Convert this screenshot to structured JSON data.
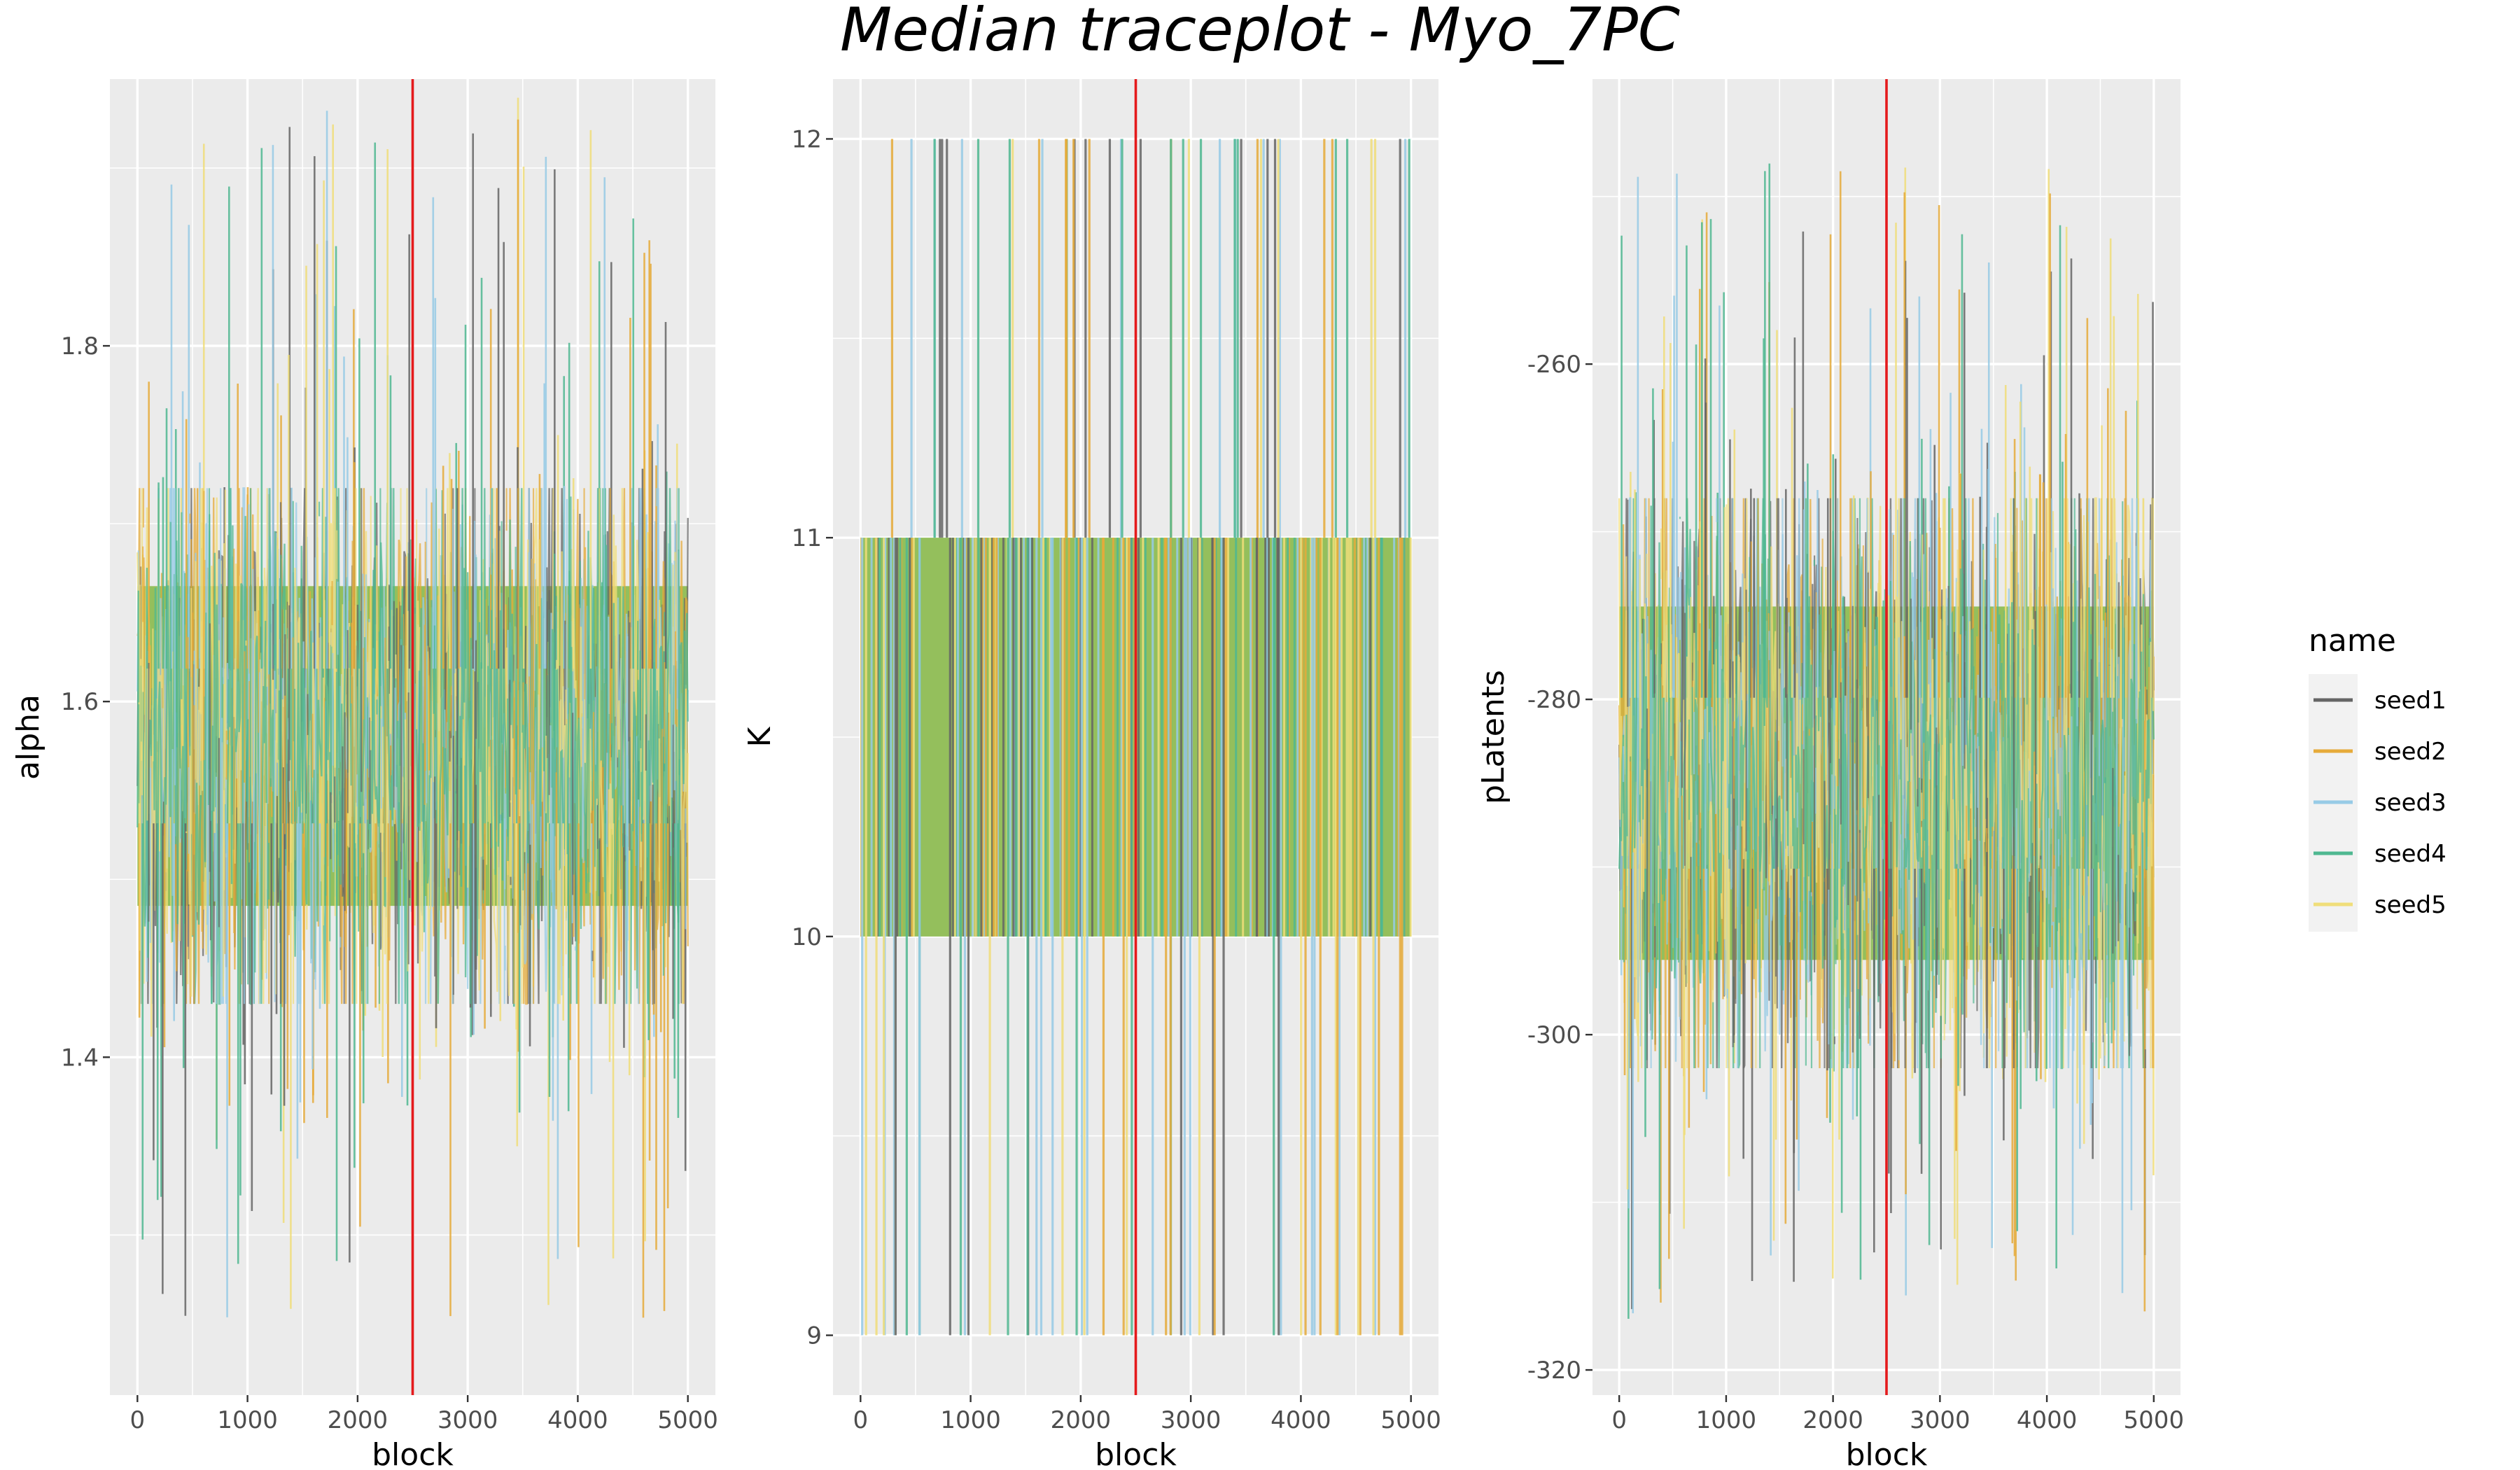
{
  "figure": {
    "title": "Median traceplot - Myo_7PC"
  },
  "colors": {
    "panel_bg": "#ebebeb",
    "grid": "#ffffff",
    "vline": "#e41a1c",
    "trace_band": "#94bf5c",
    "seed1": "#666666",
    "seed2": "#e6ab3a",
    "seed3": "#97cbe6",
    "seed4": "#4fb891",
    "seed5": "#f0de7a"
  },
  "legend": {
    "title": "name",
    "items": [
      {
        "label": "seed1",
        "color": "#666666"
      },
      {
        "label": "seed2",
        "color": "#e6ab3a"
      },
      {
        "label": "seed3",
        "color": "#97cbe6"
      },
      {
        "label": "seed4",
        "color": "#4fb891"
      },
      {
        "label": "seed5",
        "color": "#f0de7a"
      }
    ]
  },
  "chart_data": [
    {
      "type": "line",
      "title": "",
      "xlabel": "block",
      "ylabel": "alpha",
      "xlim": [
        -250,
        5250
      ],
      "ylim": [
        1.21,
        1.95
      ],
      "xticks": [
        0,
        1000,
        2000,
        3000,
        4000,
        5000
      ],
      "xtick_labels": [
        "0",
        "1000",
        "2000",
        "3000",
        "4000",
        "5000"
      ],
      "yticks": [
        1.4,
        1.6,
        1.8
      ],
      "ytick_labels": [
        "1.4",
        "1.6",
        "1.8"
      ],
      "vline_x": 2500,
      "series_names": [
        "seed1",
        "seed2",
        "seed3",
        "seed4",
        "seed5"
      ],
      "n_blocks": 5000,
      "typical_range": [
        1.43,
        1.72
      ],
      "extreme_range": [
        1.25,
        1.94
      ],
      "discrete": false
    },
    {
      "type": "line",
      "title": "",
      "xlabel": "block",
      "ylabel": "K",
      "xlim": [
        -250,
        5250
      ],
      "ylim": [
        8.85,
        12.15
      ],
      "xticks": [
        0,
        1000,
        2000,
        3000,
        4000,
        5000
      ],
      "xtick_labels": [
        "0",
        "1000",
        "2000",
        "3000",
        "4000",
        "5000"
      ],
      "yticks": [
        9,
        10,
        11,
        12
      ],
      "ytick_labels": [
        "9",
        "10",
        "11",
        "12"
      ],
      "vline_x": 2500,
      "series_names": [
        "seed1",
        "seed2",
        "seed3",
        "seed4",
        "seed5"
      ],
      "n_blocks": 5000,
      "typical_range": [
        10,
        11
      ],
      "extreme_range": [
        9,
        12
      ],
      "discrete": true
    },
    {
      "type": "line",
      "title": "",
      "xlabel": "block",
      "ylabel": "pLatents",
      "xlim": [
        -250,
        5250
      ],
      "ylim": [
        -321.5,
        -243
      ],
      "xticks": [
        0,
        1000,
        2000,
        3000,
        4000,
        5000
      ],
      "xtick_labels": [
        "0",
        "1000",
        "2000",
        "3000",
        "4000",
        "5000"
      ],
      "yticks": [
        -320,
        -300,
        -280,
        -260
      ],
      "ytick_labels": [
        "-320",
        "-300",
        "-280",
        "-260"
      ],
      "vline_x": 2500,
      "series_names": [
        "seed1",
        "seed2",
        "seed3",
        "seed4",
        "seed5"
      ],
      "n_blocks": 5000,
      "typical_range": [
        -302,
        -268
      ],
      "extreme_range": [
        -317,
        -248
      ],
      "discrete": false
    }
  ]
}
